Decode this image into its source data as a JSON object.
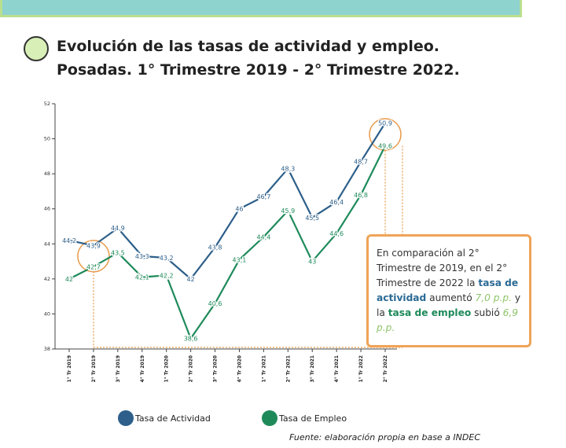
{
  "header": {
    "title_line1": "Evolución de las tasas de actividad y empleo.",
    "title_line2": "Posadas. 1° Trimestre 2019 - 2° Trimestre 2022."
  },
  "callout": {
    "text_1": "En comparación al 2° Trimestre de 2019, en el 2° Trimestre de 2022 la ",
    "activity_label": "tasa de actividad",
    "text_2": " aumentó ",
    "activity_change": "7,0 p.p.",
    "text_3": " y la ",
    "employment_label": "tasa de empleo",
    "text_4": " subió ",
    "employment_change": "6,9 p.p."
  },
  "legend": {
    "activity": "Tasa de Actividad",
    "employment": "Tasa de Empleo"
  },
  "source": "Fuente: elaboración propia en base a INDEC",
  "colors": {
    "activity": "#2d5f8a",
    "employment": "#1e8a5a",
    "highlight": "#e89a4a",
    "callout_border": "#f0a458"
  },
  "chart_data": {
    "type": "line",
    "title": "Evolución de las tasas de actividad y empleo. Posadas. 1° Trimestre 2019 - 2° Trimestre 2022.",
    "categories": [
      "1° Tr 2019",
      "2° Tr 2019",
      "3° Tr 2019",
      "4° Tr 2019",
      "1° Tr 2020",
      "2° Tr 2020",
      "3° Tr 2020",
      "4° Tr 2020",
      "1° Tr 2021",
      "2° Tr 2021",
      "3° Tr 2021",
      "4° Tr 2021",
      "1° Tr 2022",
      "2° Tr 2022"
    ],
    "ylim": [
      38,
      52
    ],
    "yticks": [
      38,
      40,
      42,
      44,
      46,
      48,
      50,
      52
    ],
    "grid": false,
    "legend_position": "bottom",
    "series": [
      {
        "name": "Tasa de Actividad",
        "values": [
          44.2,
          43.9,
          44.9,
          43.3,
          43.2,
          42.0,
          43.8,
          46.0,
          46.7,
          48.3,
          45.5,
          46.4,
          48.7,
          50.9
        ],
        "labels": [
          "44,2",
          "43,9",
          "44,9",
          "43,3",
          "43,2",
          "42",
          "43,8",
          "46",
          "46,7",
          "48,3",
          "45,5",
          "46,4",
          "48,7",
          "50,9"
        ]
      },
      {
        "name": "Tasa de Empleo",
        "values": [
          42.0,
          42.7,
          43.5,
          42.1,
          42.2,
          38.6,
          40.6,
          43.1,
          44.4,
          45.9,
          43.0,
          44.6,
          46.8,
          49.6
        ],
        "labels": [
          "42",
          "42,7",
          "43,5",
          "42,1",
          "42,2",
          "38,6",
          "40,6",
          "43,1",
          "44,4",
          "45,9",
          "43",
          "44,6",
          "46,8",
          "49,6"
        ]
      }
    ],
    "highlighted_points": [
      "2° Tr 2019",
      "2° Tr 2022"
    ]
  }
}
